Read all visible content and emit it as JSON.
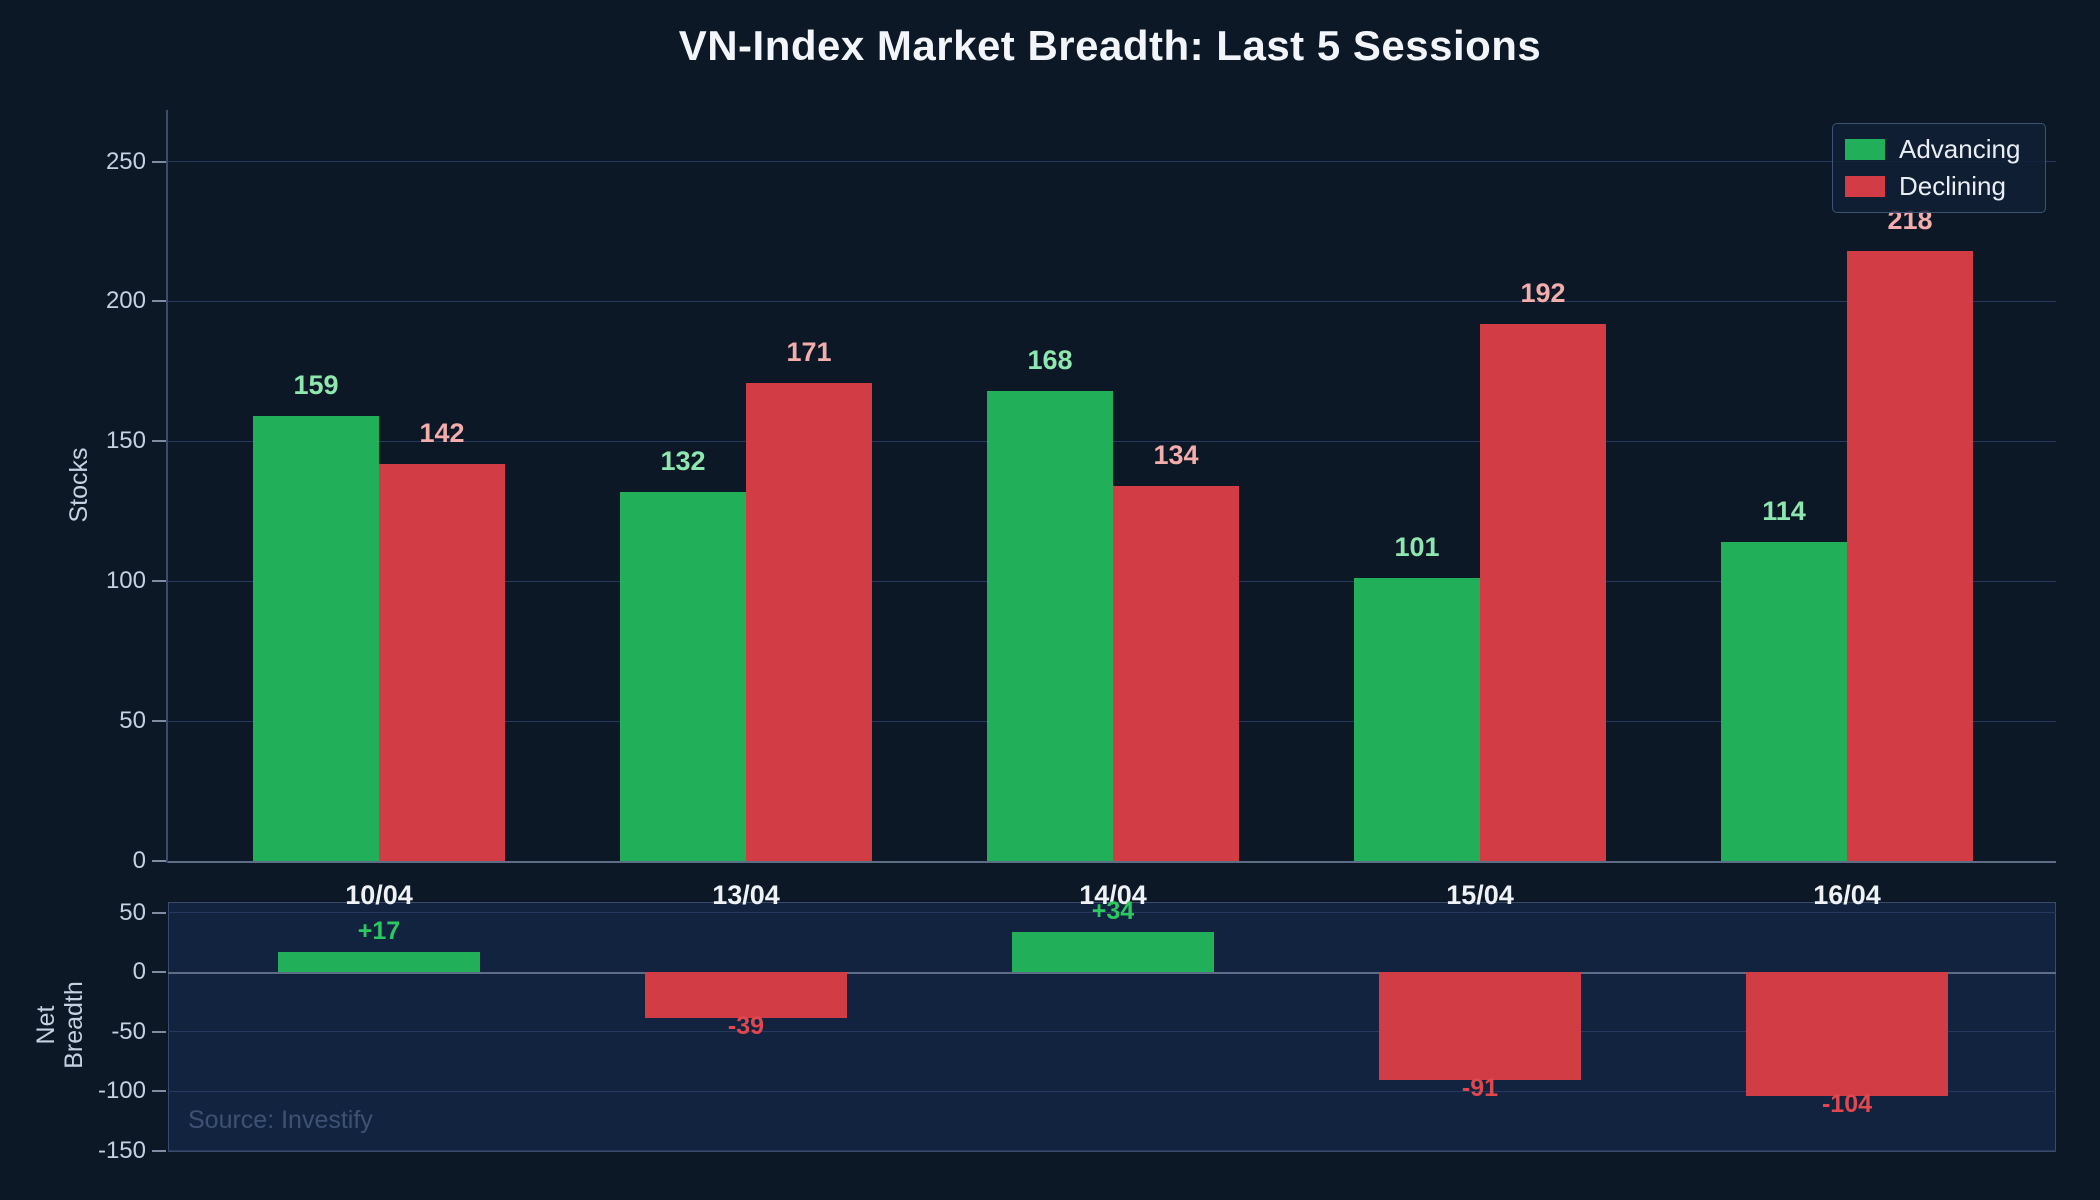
{
  "title": "VN-Index Market Breadth: Last 5 Sessions",
  "source_note": "Source: Investify",
  "axes": {
    "stocks_axis_label": "Stocks",
    "net_axis_label": "Net\nBreadth"
  },
  "colors": {
    "background": "#0c1826",
    "panel_background": "#122340",
    "gridline": "#24395d",
    "zero_line": "#5d6d85",
    "advancing": "#21b059",
    "declining": "#d23c45",
    "advancing_label": "#8fe7b0",
    "declining_label": "#f3adad",
    "net_positive_label": "#2bc95f",
    "net_negative_label": "#e2474e"
  },
  "chart_data": [
    {
      "type": "bar",
      "title": "VN-Index Market Breadth: Last 5 Sessions",
      "categories": [
        "10/04",
        "13/04",
        "14/04",
        "15/04",
        "16/04"
      ],
      "series": [
        {
          "name": "Advancing",
          "color": "#21b059",
          "label_color": "#8fe7b0",
          "values": [
            159,
            132,
            168,
            101,
            114
          ]
        },
        {
          "name": "Declining",
          "color": "#d23c45",
          "label_color": "#f3adad",
          "values": [
            142,
            171,
            134,
            192,
            218
          ]
        }
      ],
      "xlabel": "",
      "ylabel": "Stocks",
      "yticks": [
        0,
        50,
        100,
        150,
        200,
        250
      ],
      "ylim": [
        0,
        268
      ],
      "grid": true,
      "legend_position": "top-right"
    },
    {
      "type": "bar",
      "title": "",
      "categories": [
        "10/04",
        "13/04",
        "14/04",
        "15/04",
        "16/04"
      ],
      "series": [
        {
          "name": "Net Breadth",
          "values": [
            17,
            -39,
            34,
            -91,
            -104
          ],
          "labels": [
            "+17",
            "-39",
            "+34",
            "-91",
            "-104"
          ],
          "positive_color": "#21b059",
          "negative_color": "#d23c45",
          "positive_label_color": "#2bc95f",
          "negative_label_color": "#e2474e"
        }
      ],
      "xlabel": "",
      "ylabel": "Net Breadth",
      "yticks": [
        50,
        0,
        -50,
        -100,
        -150
      ],
      "ylim": [
        -150,
        60
      ],
      "grid": true,
      "legend_position": "none"
    }
  ]
}
